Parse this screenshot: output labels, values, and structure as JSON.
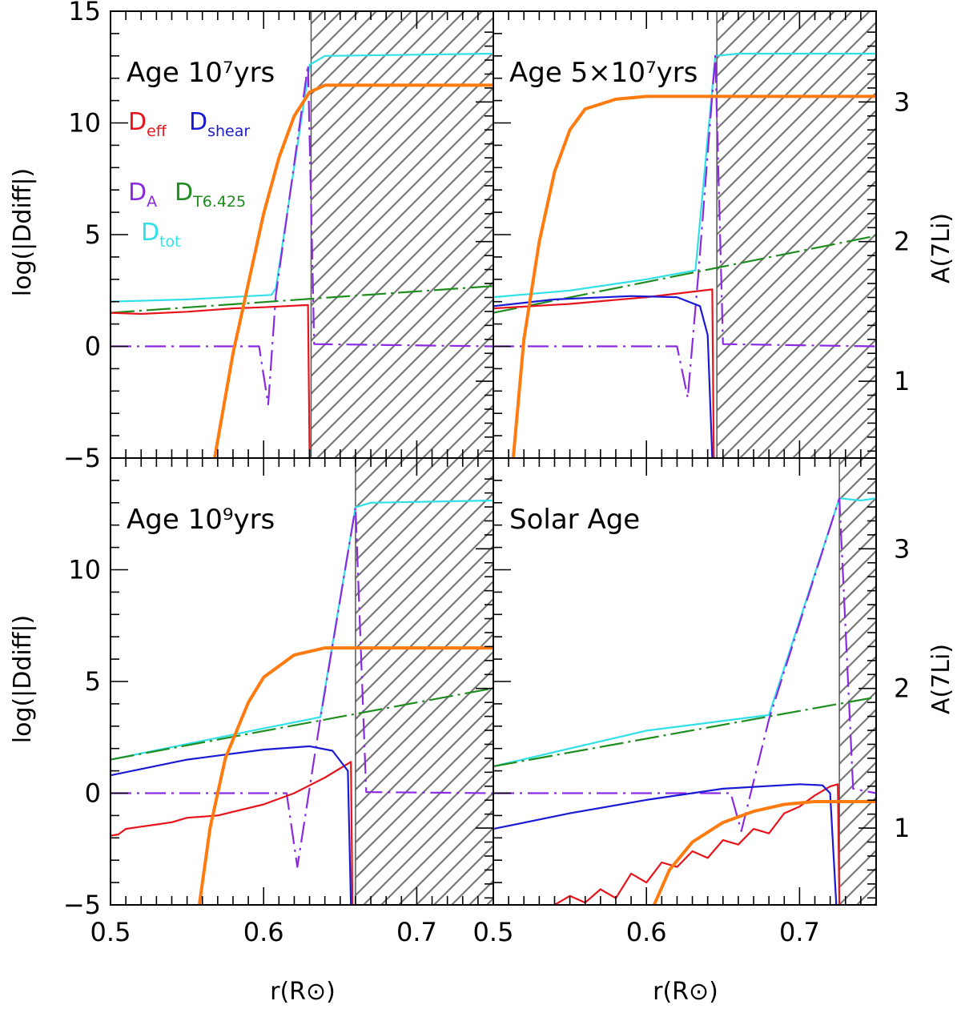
{
  "figure": {
    "xlabel": "r(R⊙)",
    "ylabel_left": "log(|Ddiff|)",
    "ylabel_right": "A(7Li)"
  },
  "legend": [
    {
      "series": "D_eff",
      "main": "D",
      "sub": "eff",
      "color": "#e8141b"
    },
    {
      "series": "D_shear",
      "main": "D",
      "sub": "shear",
      "color": "#1a1ad6"
    },
    {
      "series": "D_A",
      "main": "D",
      "sub": "A",
      "color": "#8a2be2"
    },
    {
      "series": "D_T6.425",
      "main": "D",
      "sub": "T6.425",
      "color": "#1e8c1e"
    },
    {
      "series": "D_tot",
      "main": "D",
      "sub": "tot",
      "color": "#30e0e8"
    }
  ],
  "chart_data": [
    {
      "type": "line",
      "title": "Age 10⁷yrs",
      "xlim": [
        0.5,
        0.75
      ],
      "ylim": [
        -5,
        15
      ],
      "y2lim": [
        0.45,
        3.65
      ],
      "xticks": [],
      "yticks": [
        -5,
        0,
        5,
        10,
        15
      ],
      "y2ticks": [],
      "hatch_from_x": 0.631,
      "series": [
        {
          "key": "D_tot",
          "color": "#30e0e8",
          "style": "solid",
          "axis": "y",
          "points": [
            [
              0.5,
              2.0
            ],
            [
              0.55,
              2.1
            ],
            [
              0.605,
              2.3
            ],
            [
              0.608,
              2.6
            ],
            [
              0.63,
              12.6
            ],
            [
              0.64,
              13.0
            ],
            [
              0.75,
              13.1
            ]
          ]
        },
        {
          "key": "D_A",
          "color": "#8a2be2",
          "style": "dashdot",
          "axis": "y",
          "points": [
            [
              0.5,
              0
            ],
            [
              0.597,
              0
            ],
            [
              0.603,
              -2.6
            ],
            [
              0.608,
              2.3
            ],
            [
              0.629,
              12.6
            ],
            [
              0.633,
              0.1
            ],
            [
              0.75,
              0
            ]
          ]
        },
        {
          "key": "D_T6.425",
          "color": "#1e8c1e",
          "style": "longdash",
          "axis": "y",
          "points": [
            [
              0.5,
              1.5
            ],
            [
              0.75,
              2.7
            ]
          ]
        },
        {
          "key": "D_eff",
          "color": "#e8141b",
          "style": "solid",
          "axis": "y",
          "points": [
            [
              0.5,
              1.5
            ],
            [
              0.52,
              1.45
            ],
            [
              0.55,
              1.55
            ],
            [
              0.58,
              1.7
            ],
            [
              0.6,
              1.75
            ],
            [
              0.629,
              1.85
            ],
            [
              0.63,
              -5
            ]
          ]
        },
        {
          "key": "A7Li",
          "color": "#ff7b10",
          "style": "thick",
          "axis": "y2",
          "points": [
            [
              0.568,
              0.45
            ],
            [
              0.58,
              1.2
            ],
            [
              0.59,
              1.7
            ],
            [
              0.6,
              2.2
            ],
            [
              0.61,
              2.6
            ],
            [
              0.62,
              2.9
            ],
            [
              0.63,
              3.07
            ],
            [
              0.64,
              3.12
            ],
            [
              0.75,
              3.12
            ]
          ]
        }
      ]
    },
    {
      "type": "line",
      "title": "Age 5×10⁷yrs",
      "xlim": [
        0.5,
        0.75
      ],
      "ylim": [
        -5,
        15
      ],
      "y2lim": [
        0.45,
        3.65
      ],
      "xticks": [],
      "yticks": [],
      "y2ticks": [
        1,
        2,
        3
      ],
      "hatch_from_x": 0.646,
      "series": [
        {
          "key": "D_tot",
          "color": "#30e0e8",
          "style": "solid",
          "axis": "y",
          "points": [
            [
              0.5,
              2.2
            ],
            [
              0.55,
              2.5
            ],
            [
              0.6,
              3.0
            ],
            [
              0.632,
              3.4
            ],
            [
              0.645,
              13.0
            ],
            [
              0.66,
              13.1
            ],
            [
              0.75,
              13.1
            ]
          ]
        },
        {
          "key": "D_A",
          "color": "#8a2be2",
          "style": "dashdot",
          "axis": "y",
          "points": [
            [
              0.5,
              0
            ],
            [
              0.62,
              0
            ],
            [
              0.627,
              -2.3
            ],
            [
              0.634,
              3.3
            ],
            [
              0.645,
              13.0
            ],
            [
              0.65,
              0.1
            ],
            [
              0.75,
              0
            ]
          ]
        },
        {
          "key": "D_T6.425",
          "color": "#1e8c1e",
          "style": "longdash",
          "axis": "y",
          "points": [
            [
              0.5,
              1.5
            ],
            [
              0.75,
              4.95
            ]
          ]
        },
        {
          "key": "D_eff",
          "color": "#e8141b",
          "style": "solid",
          "axis": "y",
          "points": [
            [
              0.5,
              1.7
            ],
            [
              0.55,
              1.9
            ],
            [
              0.6,
              2.2
            ],
            [
              0.643,
              2.55
            ],
            [
              0.644,
              -5
            ]
          ]
        },
        {
          "key": "D_shear",
          "color": "#1a1ad6",
          "style": "solid",
          "axis": "y",
          "points": [
            [
              0.5,
              1.8
            ],
            [
              0.54,
              2.1
            ],
            [
              0.59,
              2.25
            ],
            [
              0.62,
              2.2
            ],
            [
              0.635,
              1.8
            ],
            [
              0.64,
              0.5
            ],
            [
              0.643,
              -5
            ]
          ]
        },
        {
          "key": "A7Li",
          "color": "#ff7b10",
          "style": "thick",
          "axis": "y2",
          "points": [
            [
              0.513,
              0.45
            ],
            [
              0.52,
              1.3
            ],
            [
              0.53,
              2.0
            ],
            [
              0.54,
              2.5
            ],
            [
              0.55,
              2.8
            ],
            [
              0.56,
              2.95
            ],
            [
              0.58,
              3.02
            ],
            [
              0.6,
              3.04
            ],
            [
              0.75,
              3.04
            ]
          ]
        }
      ]
    },
    {
      "type": "line",
      "title": "Age 10⁹yrs",
      "xlim": [
        0.5,
        0.75
      ],
      "ylim": [
        -5,
        15
      ],
      "y2lim": [
        0.45,
        3.65
      ],
      "xticks": [
        0.5,
        0.6,
        0.7
      ],
      "yticks": [
        -5,
        0,
        5,
        10
      ],
      "y2ticks": [],
      "hatch_from_x": 0.66,
      "series": [
        {
          "key": "D_tot",
          "color": "#30e0e8",
          "style": "solid",
          "axis": "y",
          "points": [
            [
              0.5,
              1.5
            ],
            [
              0.55,
              2.2
            ],
            [
              0.6,
              2.9
            ],
            [
              0.637,
              3.4
            ],
            [
              0.66,
              12.8
            ],
            [
              0.67,
              13.0
            ],
            [
              0.75,
              13.1
            ]
          ]
        },
        {
          "key": "D_A",
          "color": "#8a2be2",
          "style": "dashdot",
          "axis": "y",
          "points": [
            [
              0.5,
              0
            ],
            [
              0.615,
              0
            ],
            [
              0.622,
              -3.3
            ],
            [
              0.637,
              3.3
            ],
            [
              0.66,
              12.8
            ],
            [
              0.667,
              0.05
            ],
            [
              0.75,
              0
            ]
          ]
        },
        {
          "key": "D_T6.425",
          "color": "#1e8c1e",
          "style": "longdash",
          "axis": "y",
          "points": [
            [
              0.5,
              1.5
            ],
            [
              0.75,
              4.7
            ]
          ]
        },
        {
          "key": "D_eff",
          "color": "#e8141b",
          "style": "solid",
          "axis": "y",
          "points": [
            [
              0.5,
              -1.9
            ],
            [
              0.505,
              -1.85
            ],
            [
              0.51,
              -1.6
            ],
            [
              0.52,
              -1.5
            ],
            [
              0.53,
              -1.4
            ],
            [
              0.54,
              -1.3
            ],
            [
              0.55,
              -1.1
            ],
            [
              0.57,
              -1.0
            ],
            [
              0.6,
              -0.5
            ],
            [
              0.62,
              0.0
            ],
            [
              0.64,
              0.7
            ],
            [
              0.657,
              1.4
            ],
            [
              0.658,
              -5
            ]
          ]
        },
        {
          "key": "D_shear",
          "color": "#1a1ad6",
          "style": "solid",
          "axis": "y",
          "points": [
            [
              0.5,
              0.8
            ],
            [
              0.55,
              1.5
            ],
            [
              0.6,
              1.95
            ],
            [
              0.63,
              2.1
            ],
            [
              0.645,
              1.9
            ],
            [
              0.655,
              1.0
            ],
            [
              0.657,
              -5
            ]
          ]
        },
        {
          "key": "A7Li",
          "color": "#ff7b10",
          "style": "thick",
          "axis": "y2",
          "points": [
            [
              0.558,
              0.45
            ],
            [
              0.565,
              1.0
            ],
            [
              0.575,
              1.5
            ],
            [
              0.59,
              1.9
            ],
            [
              0.6,
              2.08
            ],
            [
              0.62,
              2.24
            ],
            [
              0.64,
              2.29
            ],
            [
              0.75,
              2.29
            ]
          ]
        }
      ]
    },
    {
      "type": "line",
      "title": "Solar Age",
      "xlim": [
        0.5,
        0.75
      ],
      "ylim": [
        -5,
        15
      ],
      "y2lim": [
        0.45,
        3.65
      ],
      "xticks": [
        0.5,
        0.6,
        0.7
      ],
      "yticks": [],
      "y2ticks": [
        1,
        2,
        3
      ],
      "hatch_from_x": 0.726,
      "series": [
        {
          "key": "D_tot",
          "color": "#30e0e8",
          "style": "solid",
          "axis": "y",
          "points": [
            [
              0.5,
              1.2
            ],
            [
              0.55,
              2.0
            ],
            [
              0.6,
              2.8
            ],
            [
              0.68,
              3.5
            ],
            [
              0.726,
              13.2
            ],
            [
              0.74,
              13.1
            ],
            [
              0.75,
              13.2
            ]
          ]
        },
        {
          "key": "D_A",
          "color": "#8a2be2",
          "style": "dashdot",
          "axis": "y",
          "points": [
            [
              0.5,
              0
            ],
            [
              0.655,
              0
            ],
            [
              0.662,
              -1.7
            ],
            [
              0.68,
              3.3
            ],
            [
              0.726,
              13.2
            ],
            [
              0.735,
              0.2
            ],
            [
              0.75,
              0
            ]
          ]
        },
        {
          "key": "D_T6.425",
          "color": "#1e8c1e",
          "style": "longdash",
          "axis": "y",
          "points": [
            [
              0.5,
              1.2
            ],
            [
              0.75,
              4.3
            ]
          ]
        },
        {
          "key": "D_eff",
          "color": "#e8141b",
          "style": "solid",
          "axis": "y",
          "points": [
            [
              0.54,
              -5.0
            ],
            [
              0.55,
              -4.6
            ],
            [
              0.56,
              -4.9
            ],
            [
              0.57,
              -4.3
            ],
            [
              0.58,
              -4.7
            ],
            [
              0.59,
              -3.6
            ],
            [
              0.6,
              -4.0
            ],
            [
              0.61,
              -3.1
            ],
            [
              0.62,
              -3.3
            ],
            [
              0.63,
              -2.6
            ],
            [
              0.64,
              -2.9
            ],
            [
              0.65,
              -2.1
            ],
            [
              0.66,
              -2.3
            ],
            [
              0.67,
              -1.6
            ],
            [
              0.68,
              -1.8
            ],
            [
              0.69,
              -0.9
            ],
            [
              0.7,
              -0.6
            ],
            [
              0.71,
              -0.1
            ],
            [
              0.72,
              0.3
            ],
            [
              0.725,
              0.4
            ],
            [
              0.726,
              -5
            ]
          ]
        },
        {
          "key": "D_shear",
          "color": "#1a1ad6",
          "style": "solid",
          "axis": "y",
          "points": [
            [
              0.5,
              -1.6
            ],
            [
              0.55,
              -0.9
            ],
            [
              0.6,
              -0.3
            ],
            [
              0.65,
              0.2
            ],
            [
              0.7,
              0.4
            ],
            [
              0.715,
              0.35
            ],
            [
              0.72,
              0.0
            ],
            [
              0.724,
              -5
            ]
          ]
        },
        {
          "key": "A7Li",
          "color": "#ff7b10",
          "style": "thick",
          "axis": "y2",
          "points": [
            [
              0.605,
              0.45
            ],
            [
              0.615,
              0.7
            ],
            [
              0.63,
              0.9
            ],
            [
              0.65,
              1.04
            ],
            [
              0.67,
              1.12
            ],
            [
              0.69,
              1.17
            ],
            [
              0.71,
              1.19
            ],
            [
              0.75,
              1.19
            ]
          ]
        }
      ]
    }
  ]
}
